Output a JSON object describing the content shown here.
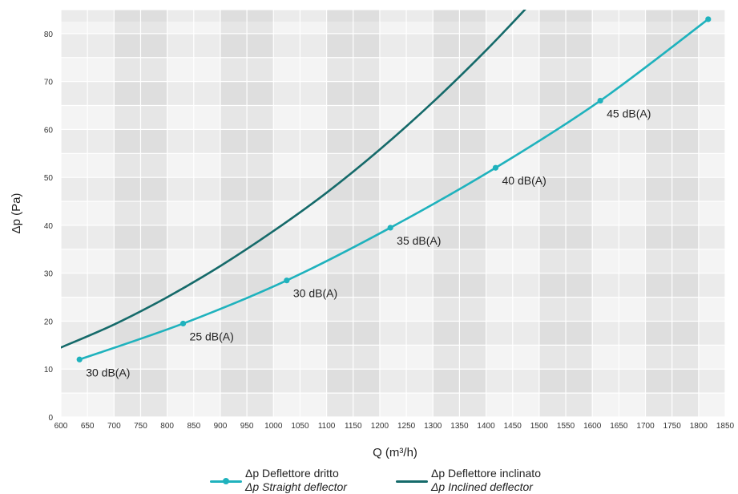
{
  "chart_data": {
    "type": "line",
    "xlabel": "Q (m³/h)",
    "ylabel": "Δp (Pa)",
    "xlim": [
      600,
      1850
    ],
    "ylim": [
      0,
      85
    ],
    "x_ticks": [
      600,
      650,
      700,
      750,
      800,
      850,
      900,
      950,
      1000,
      1050,
      1100,
      1150,
      1200,
      1250,
      1300,
      1350,
      1400,
      1450,
      1500,
      1550,
      1600,
      1650,
      1700,
      1750,
      1800,
      1850
    ],
    "y_ticks": [
      0,
      10,
      20,
      30,
      40,
      50,
      60,
      70,
      80
    ],
    "grid": "alternating shaded columns and rows",
    "legend_position": "bottom",
    "series": [
      {
        "name": "Δp Deflettore dritto",
        "name_en": "Δp Straight deflector",
        "color": "#1fb2bd",
        "markers": true,
        "points": [
          {
            "x": 635,
            "y": 12,
            "label": "30 dB(A)"
          },
          {
            "x": 830,
            "y": 19.5,
            "label": "25 dB(A)"
          },
          {
            "x": 1025,
            "y": 28.5,
            "label": "30 dB(A)"
          },
          {
            "x": 1220,
            "y": 39.5,
            "label": "35 dB(A)"
          },
          {
            "x": 1418,
            "y": 52,
            "label": "40 dB(A)"
          },
          {
            "x": 1615,
            "y": 66,
            "label": "45 dB(A)"
          },
          {
            "x": 1818,
            "y": 83,
            "label": ""
          }
        ]
      },
      {
        "name": "Δp Deflettore inclinato",
        "name_en": "Δp Inclined deflector",
        "color": "#156a6a",
        "markers": false,
        "points": [
          {
            "x": 600,
            "y": 14.5
          },
          {
            "x": 700,
            "y": 19.3
          },
          {
            "x": 800,
            "y": 25
          },
          {
            "x": 900,
            "y": 31.5
          },
          {
            "x": 1000,
            "y": 38.8
          },
          {
            "x": 1100,
            "y": 46.8
          },
          {
            "x": 1200,
            "y": 55.8
          },
          {
            "x": 1300,
            "y": 65.7
          },
          {
            "x": 1400,
            "y": 76.5
          },
          {
            "x": 1480,
            "y": 85.8
          }
        ]
      }
    ]
  }
}
